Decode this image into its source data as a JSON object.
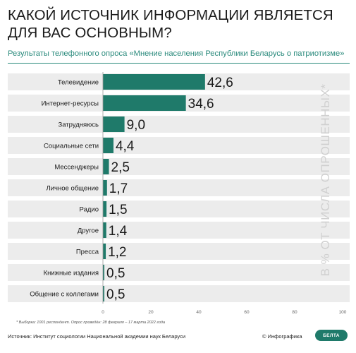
{
  "title": "КАКОЙ ИСТОЧНИК ИНФОРМАЦИИ ЯВЛЯЕТСЯ ДЛЯ ВАС ОСНОВНЫМ?",
  "subtitle": "Результаты телефонного опроса «Мнение населения Республики Беларусь о патриотизме»",
  "footnote": "* Выборка: 1001 респондент. Опрос проведён: 28 февраля – 17 марта 2022 года",
  "source": "Источник: Институт социологии Национальной академии наук Беларуси",
  "copyright": "© Инфографика",
  "logo_text": "БЕЛТА",
  "colors": {
    "bar": "#1f7a6a",
    "band": "#ececec",
    "accent": "#2a8a7c"
  },
  "chart_data": {
    "type": "bar",
    "orientation": "horizontal",
    "categories": [
      "Телевидение",
      "Интернет-ресурсы",
      "Затрудняюсь",
      "Социальные сети",
      "Мессенджеры",
      "Личное общение",
      "Радио",
      "Другое",
      "Пресса",
      "Книжные издания",
      "Общение с коллегами"
    ],
    "values": [
      42.6,
      34.6,
      9.0,
      4.4,
      2.5,
      1.7,
      1.5,
      1.4,
      1.2,
      0.5,
      0.5
    ],
    "value_labels": [
      "42,6",
      "34,6",
      "9,0",
      "4,4",
      "2,5",
      "1,7",
      "1,5",
      "1,4",
      "1,2",
      "0,5",
      "0,5"
    ],
    "xlim": [
      0,
      100
    ],
    "xticks": [
      0,
      20,
      40,
      60,
      80,
      100
    ],
    "ylabel": "В % ОТ ЧИСЛА ОПРОШЕННЫХ*",
    "grid": false
  }
}
